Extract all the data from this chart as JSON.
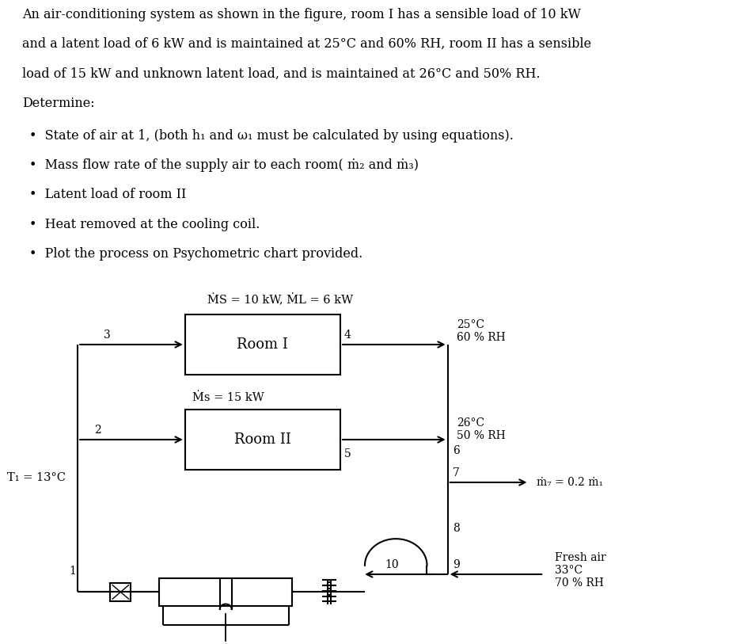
{
  "title_lines": [
    "An air-conditioning system as shown in the figure, room I has a sensible load of 10 kW",
    "and a latent load of 6 kW and is maintained at 25°C and 60% RH, room II has a sensible",
    "load of 15 kW and unknown latent load, and is maintained at 26°C and 50% RH.",
    "Determine:"
  ],
  "bullets": [
    "State of air at 1, (both h₁ and ω₁ must be calculated by using equations).",
    "Mass flow rate of the supply air to each room( ṁ₂ and ṁ₃)",
    "Latent load of room II",
    "Heat removed at the cooling coil.",
    "Plot the process on Psychometric chart provided."
  ],
  "room1_label": "Room I",
  "room2_label": "Room II",
  "room1_qs": "ṀS = 10 kW, ṀL = 6 kW",
  "room2_qs": "Ṁs = 15 kW",
  "room1_cond_line1": "25°C",
  "room1_cond_line2": "60 % RH",
  "room2_cond_line1": "26°C",
  "room2_cond_line2": "50 % RH",
  "T1_label": "T₁ = 13°C",
  "fresh_air_line1": "Fresh air",
  "fresh_air_line2": "33°C",
  "fresh_air_line3": "70 % RH",
  "m7_label": "ṁ₇ = 0.2 ṁ₁",
  "bg_color": "#ffffff",
  "line_color": "#000000",
  "node_labels": [
    "1",
    "2",
    "3",
    "4",
    "5",
    "6",
    "7",
    "8",
    "9",
    "10"
  ]
}
